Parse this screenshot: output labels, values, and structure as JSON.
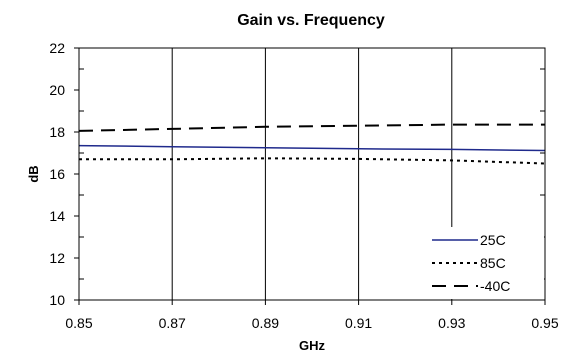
{
  "chart_data": {
    "type": "line",
    "title": "Gain vs. Frequency",
    "xlabel": "GHz",
    "ylabel": "dB",
    "xlim": [
      0.85,
      0.95
    ],
    "ylim": [
      10,
      22
    ],
    "x_ticks": [
      "0.85",
      "0.87",
      "0.89",
      "0.91",
      "0.93",
      "0.95"
    ],
    "y_ticks": [
      "10",
      "12",
      "14",
      "16",
      "18",
      "20",
      "22"
    ],
    "grid": true,
    "legend_position": "bottom-right",
    "series": [
      {
        "name": "25C",
        "color": "#1f2a8c",
        "dash": "solid",
        "x": [
          0.85,
          0.87,
          0.89,
          0.91,
          0.93,
          0.95
        ],
        "values": [
          17.35,
          17.3,
          17.25,
          17.2,
          17.17,
          17.12
        ]
      },
      {
        "name": "85C",
        "color": "#000000",
        "dash": "dotted",
        "x": [
          0.85,
          0.87,
          0.89,
          0.91,
          0.93,
          0.95
        ],
        "values": [
          16.7,
          16.7,
          16.75,
          16.72,
          16.65,
          16.5
        ]
      },
      {
        "name": "-40C",
        "color": "#000000",
        "dash": "dashed",
        "x": [
          0.85,
          0.87,
          0.89,
          0.91,
          0.93,
          0.95
        ],
        "values": [
          18.05,
          18.15,
          18.25,
          18.3,
          18.35,
          18.35
        ]
      }
    ]
  }
}
